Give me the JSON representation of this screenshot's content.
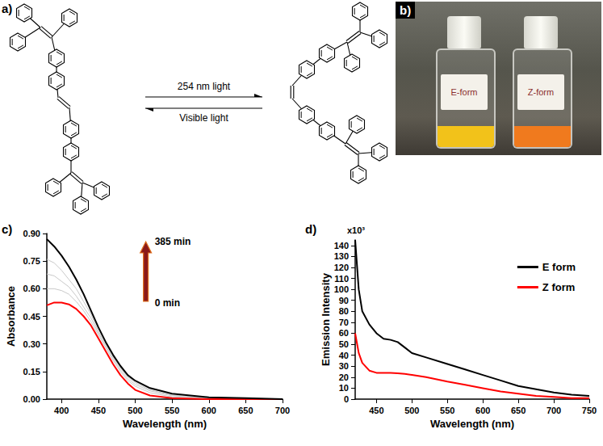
{
  "panels": {
    "a": {
      "label": "a)",
      "forward": "254 nm light",
      "backward": "Visible light"
    },
    "b": {
      "label": "b)",
      "vials": [
        {
          "label": "E-form",
          "color": "#f2c21a"
        },
        {
          "label": "Z-form",
          "color": "#f07a1e"
        }
      ]
    }
  },
  "chart_data": [
    {
      "panel_label": "c)",
      "type": "line",
      "x_label": "Wavelength (nm)",
      "y_label": "Absorbance",
      "x": [
        380,
        390,
        400,
        410,
        420,
        430,
        440,
        450,
        460,
        470,
        480,
        490,
        500,
        520,
        550,
        600,
        650,
        700
      ],
      "series": [
        {
          "name": "0 min",
          "color": "#ff0000",
          "values": [
            0.51,
            0.525,
            0.525,
            0.515,
            0.49,
            0.45,
            0.4,
            0.33,
            0.26,
            0.19,
            0.13,
            0.085,
            0.05,
            0.02,
            0.005,
            0,
            0,
            0
          ]
        },
        {
          "color": "#c8c8c8",
          "values": [
            0.6,
            0.6,
            0.59,
            0.57,
            0.53,
            0.48,
            0.42,
            0.35,
            0.28,
            0.21,
            0.15,
            0.1,
            0.07,
            0.035,
            0.012,
            0.003,
            0,
            0
          ]
        },
        {
          "color": "#c8c8c8",
          "values": [
            0.68,
            0.67,
            0.64,
            0.61,
            0.56,
            0.5,
            0.44,
            0.36,
            0.29,
            0.22,
            0.16,
            0.11,
            0.08,
            0.045,
            0.018,
            0.005,
            0.002,
            0
          ]
        },
        {
          "color": "#c8c8c8",
          "values": [
            0.76,
            0.74,
            0.7,
            0.65,
            0.6,
            0.53,
            0.46,
            0.37,
            0.3,
            0.23,
            0.17,
            0.12,
            0.09,
            0.05,
            0.022,
            0.007,
            0.003,
            0
          ]
        },
        {
          "name": "385 min",
          "color": "#000000",
          "values": [
            0.87,
            0.83,
            0.78,
            0.72,
            0.65,
            0.57,
            0.48,
            0.39,
            0.31,
            0.24,
            0.18,
            0.13,
            0.1,
            0.06,
            0.03,
            0.01,
            0.005,
            0
          ]
        }
      ],
      "xlim": [
        380,
        700
      ],
      "xticks": [
        400,
        450,
        500,
        550,
        600,
        650,
        700
      ],
      "ylim": [
        0,
        0.9
      ],
      "yticks": [
        {
          "value": 0,
          "label": "0.00"
        },
        {
          "value": 0.15,
          "label": "0.15"
        },
        {
          "value": 0.3,
          "label": "0.30"
        },
        {
          "value": 0.45,
          "label": "0.45"
        },
        {
          "value": 0.6,
          "label": "0.60"
        },
        {
          "value": 0.75,
          "label": "0.75"
        },
        {
          "value": 0.9,
          "label": "0.90"
        }
      ],
      "grid": false
    },
    {
      "panel_label": "d)",
      "type": "line",
      "x_label": "Wavelength (nm)",
      "y_label": "Emission Intensity",
      "annotations": [
        {
          "text": "x10³"
        }
      ],
      "x": [
        420,
        425,
        430,
        440,
        450,
        460,
        470,
        480,
        490,
        500,
        520,
        550,
        575,
        600,
        625,
        650,
        675,
        700,
        725,
        750
      ],
      "series": [
        {
          "name": "E form",
          "color": "#000000",
          "values": [
            145,
            100,
            80,
            68,
            60,
            55,
            54,
            52,
            47,
            42,
            38,
            32,
            27,
            22,
            17,
            12,
            9,
            6,
            4,
            3
          ]
        },
        {
          "name": "Z form",
          "color": "#ff0000",
          "values": [
            60,
            42,
            33,
            26,
            24,
            24,
            24,
            23.5,
            23,
            22,
            20,
            16,
            13,
            10,
            7,
            5,
            3,
            2,
            1,
            1
          ]
        }
      ],
      "xlim": [
        420,
        750
      ],
      "xticks": [
        450,
        500,
        550,
        600,
        650,
        700,
        750
      ],
      "ylim": [
        0,
        145
      ],
      "yticks": [
        0,
        10,
        20,
        30,
        40,
        50,
        60,
        70,
        80,
        90,
        100,
        110,
        120,
        130,
        140
      ],
      "legend": "upper right",
      "grid": false
    }
  ]
}
